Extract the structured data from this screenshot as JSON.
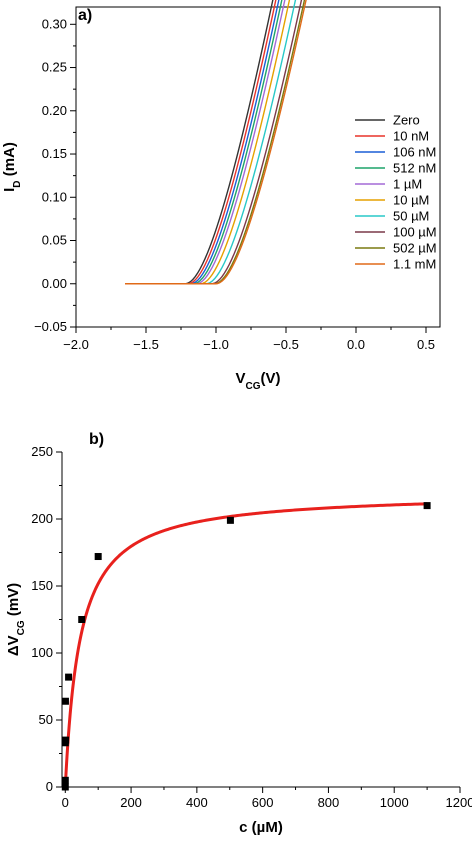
{
  "chart_data": [
    {
      "panel_label": "a)",
      "type": "line",
      "xlabel_main": "V",
      "xlabel_sub": "CG",
      "xlabel_unit": "(V)",
      "ylabel_main": "I",
      "ylabel_sub": "D",
      "ylabel_unit": " (mA)",
      "xlim": [
        -2.0,
        0.6
      ],
      "ylim": [
        -0.05,
        0.32
      ],
      "xticks": [
        -2.0,
        -1.5,
        -1.0,
        -0.5,
        0.0,
        0.5
      ],
      "xtick_labels": [
        "−2.0",
        "−1.5",
        "−1.0",
        "−0.5",
        "0.0",
        "0.5"
      ],
      "yticks": [
        -0.05,
        0.0,
        0.05,
        0.1,
        0.15,
        0.2,
        0.25,
        0.3
      ],
      "ytick_labels": [
        "−0.05",
        "0.00",
        "0.05",
        "0.10",
        "0.15",
        "0.20",
        "0.25",
        "0.30"
      ],
      "grid": false,
      "legend_position": "right",
      "x_range": [
        -1.65,
        0.43
      ],
      "series": [
        {
          "name": "Zero",
          "color": "#333333",
          "threshold": -1.22,
          "y_end": 0.293
        },
        {
          "name": "10 nM",
          "color": "#e8332a",
          "threshold": -1.2,
          "y_end": 0.292
        },
        {
          "name": "106 nM",
          "color": "#1a5fd6",
          "threshold": -1.18,
          "y_end": 0.291
        },
        {
          "name": "512 nM",
          "color": "#1da36a",
          "threshold": -1.16,
          "y_end": 0.29
        },
        {
          "name": "1 µM",
          "color": "#a36ad6",
          "threshold": -1.14,
          "y_end": 0.289
        },
        {
          "name": "10 µM",
          "color": "#e5a100",
          "threshold": -1.11,
          "y_end": 0.287
        },
        {
          "name": "50 µM",
          "color": "#28c8c8",
          "threshold": -1.07,
          "y_end": 0.285
        },
        {
          "name": "100 µM",
          "color": "#7a3848",
          "threshold": -1.03,
          "y_end": 0.283
        },
        {
          "name": "502 µM",
          "color": "#7a7a10",
          "threshold": -1.01,
          "y_end": 0.282
        },
        {
          "name": "1.1 mM",
          "color": "#e06a18",
          "threshold": -1.0,
          "y_end": 0.281
        }
      ]
    },
    {
      "panel_label": "b)",
      "type": "scatter",
      "xlabel": "c (µM)",
      "ylabel_main": "ΔV",
      "ylabel_sub": "CG",
      "ylabel_unit": " (mV)",
      "xlim": [
        -10,
        1200
      ],
      "ylim": [
        0,
        250
      ],
      "xticks": [
        0,
        200,
        400,
        600,
        800,
        1000,
        1200
      ],
      "xtick_labels": [
        "0",
        "200",
        "400",
        "600",
        "800",
        "1000",
        "1200"
      ],
      "yticks": [
        0,
        50,
        100,
        150,
        200,
        250
      ],
      "ytick_labels": [
        "0",
        "50",
        "100",
        "150",
        "200",
        "250"
      ],
      "grid": false,
      "points": [
        {
          "x": 0,
          "y": 0
        },
        {
          "x": 0.01,
          "y": 5
        },
        {
          "x": 0.1,
          "y": 33
        },
        {
          "x": 0.5,
          "y": 64
        },
        {
          "x": 1,
          "y": 35
        },
        {
          "x": 10,
          "y": 82
        },
        {
          "x": 50,
          "y": 125
        },
        {
          "x": 100,
          "y": 172
        },
        {
          "x": 502,
          "y": 199
        },
        {
          "x": 1100,
          "y": 210
        }
      ],
      "point_color": "#000000",
      "fit": {
        "color": "#e8211d",
        "vmax": 220,
        "k": 45
      }
    }
  ]
}
